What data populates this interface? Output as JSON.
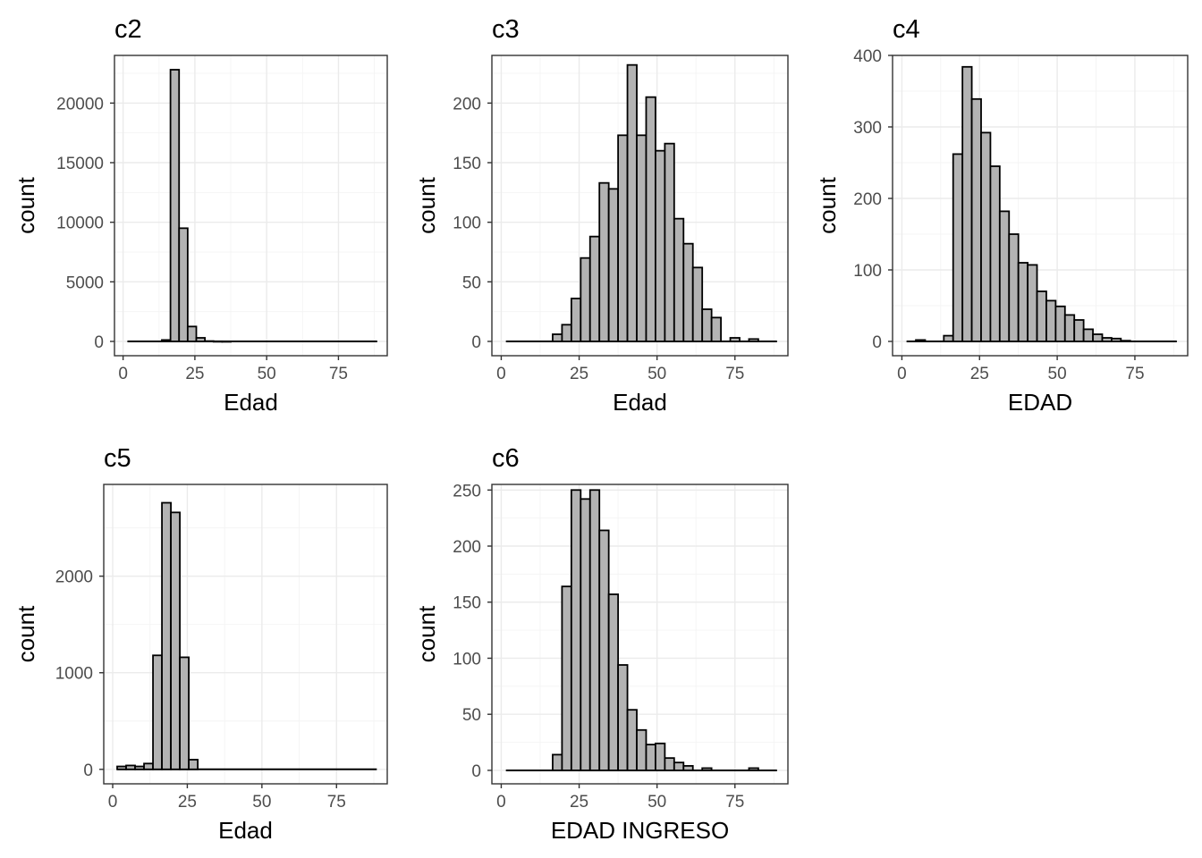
{
  "chart_data": [
    {
      "type": "bar",
      "title": "c2",
      "xlabel": "Edad",
      "ylabel": "count",
      "xlim": [
        -3,
        92
      ],
      "ylim": [
        -1200,
        24000
      ],
      "x_ticks": [
        0,
        25,
        50,
        75
      ],
      "x_tick_labels": [
        "0",
        "25",
        "50",
        "75"
      ],
      "y_ticks": [
        0,
        5000,
        10000,
        15000,
        20000
      ],
      "y_tick_labels": [
        "0",
        "5000",
        "10000",
        "15000",
        "20000"
      ],
      "bin_width": 3,
      "bin_start": 1.5,
      "counts": [
        0,
        0,
        0,
        0,
        120,
        22800,
        9500,
        1250,
        300,
        30,
        10,
        5,
        0,
        0,
        0,
        0,
        0,
        0,
        0,
        0,
        0,
        0,
        0,
        0,
        0,
        0,
        0,
        0,
        0
      ],
      "grid": true
    },
    {
      "type": "bar",
      "title": "c3",
      "xlabel": "Edad",
      "ylabel": "count",
      "xlim": [
        -3,
        92
      ],
      "ylim": [
        -12,
        240
      ],
      "x_ticks": [
        0,
        25,
        50,
        75
      ],
      "x_tick_labels": [
        "0",
        "25",
        "50",
        "75"
      ],
      "y_ticks": [
        0,
        50,
        100,
        150,
        200
      ],
      "y_tick_labels": [
        "0",
        "50",
        "100",
        "150",
        "200"
      ],
      "bin_width": 3,
      "bin_start": 1.5,
      "counts": [
        0,
        0,
        0,
        0,
        0,
        6,
        14,
        36,
        70,
        88,
        133,
        128,
        173,
        232,
        173,
        205,
        160,
        166,
        103,
        82,
        62,
        27,
        20,
        0,
        3,
        0,
        2,
        0,
        0
      ],
      "grid": true
    },
    {
      "type": "bar",
      "title": "c4",
      "xlabel": "EDAD",
      "ylabel": "count",
      "xlim": [
        -3,
        92
      ],
      "ylim": [
        -20,
        400
      ],
      "x_ticks": [
        0,
        25,
        50,
        75
      ],
      "x_tick_labels": [
        "0",
        "25",
        "50",
        "75"
      ],
      "y_ticks": [
        0,
        100,
        200,
        300,
        400
      ],
      "y_tick_labels": [
        "0",
        "100",
        "200",
        "300",
        "400"
      ],
      "bin_width": 3,
      "bin_start": 1.5,
      "counts": [
        0,
        2,
        0,
        0,
        8,
        262,
        384,
        339,
        292,
        245,
        182,
        150,
        110,
        107,
        70,
        57,
        49,
        37,
        30,
        17,
        10,
        5,
        4,
        1,
        0,
        0,
        0,
        0,
        0
      ],
      "grid": true
    },
    {
      "type": "bar",
      "title": "c5",
      "xlabel": "Edad",
      "ylabel": "count",
      "xlim": [
        -3,
        92
      ],
      "ylim": [
        -150,
        2950
      ],
      "x_ticks": [
        0,
        25,
        50,
        75
      ],
      "x_tick_labels": [
        "0",
        "25",
        "50",
        "75"
      ],
      "y_ticks": [
        0,
        1000,
        2000
      ],
      "y_tick_labels": [
        "0",
        "1000",
        "2000"
      ],
      "bin_width": 3,
      "bin_start": 1.5,
      "counts": [
        30,
        40,
        30,
        60,
        1180,
        2760,
        2660,
        1160,
        100,
        0,
        0,
        0,
        0,
        0,
        0,
        0,
        0,
        0,
        0,
        0,
        0,
        0,
        0,
        0,
        0,
        0,
        0,
        0,
        0
      ],
      "grid": true
    },
    {
      "type": "bar",
      "title": "c6",
      "xlabel": "EDAD INGRESO",
      "ylabel": "count",
      "xlim": [
        -3,
        92
      ],
      "ylim": [
        -12,
        255
      ],
      "x_ticks": [
        0,
        25,
        50,
        75
      ],
      "x_tick_labels": [
        "0",
        "25",
        "50",
        "75"
      ],
      "y_ticks": [
        0,
        50,
        100,
        150,
        200,
        250
      ],
      "y_tick_labels": [
        "0",
        "50",
        "100",
        "150",
        "200",
        "250"
      ],
      "bin_width": 3,
      "bin_start": 1.5,
      "counts": [
        0,
        0,
        0,
        0,
        0,
        14,
        164,
        250,
        242,
        250,
        214,
        157,
        94,
        54,
        36,
        23,
        24,
        11,
        7,
        4,
        0,
        2,
        0,
        0,
        0,
        0,
        2,
        0,
        0
      ],
      "grid": true
    }
  ]
}
